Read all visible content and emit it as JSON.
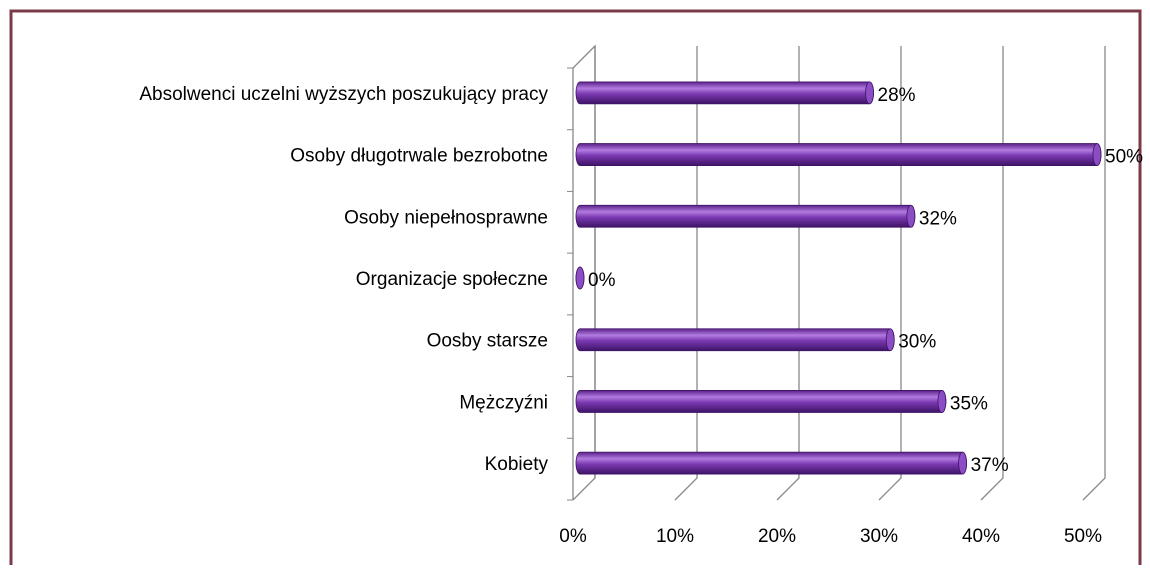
{
  "chart_data": {
    "type": "bar",
    "orientation": "horizontal",
    "categories": [
      "Absolwenci uczelni wyższych poszukujący pracy",
      "Osoby długotrwale bezrobotne",
      "Osoby niepełnosprawne",
      "Organizacje społeczne",
      "Oosby starsze",
      "Mężczyźni",
      "Kobiety"
    ],
    "values": [
      28,
      50,
      32,
      0,
      30,
      35,
      37
    ],
    "value_labels": [
      "28%",
      "50%",
      "32%",
      "0%",
      "30%",
      "35%",
      "37%"
    ],
    "color": "#7030a0",
    "xlim": [
      0,
      50
    ],
    "xticks": [
      {
        "value": 0,
        "label": "0%"
      },
      {
        "value": 10,
        "label": "10%"
      },
      {
        "value": 20,
        "label": "20%"
      },
      {
        "value": 30,
        "label": "30%"
      },
      {
        "value": 40,
        "label": "40%"
      },
      {
        "value": 50,
        "label": "50%"
      }
    ],
    "grid": true
  }
}
